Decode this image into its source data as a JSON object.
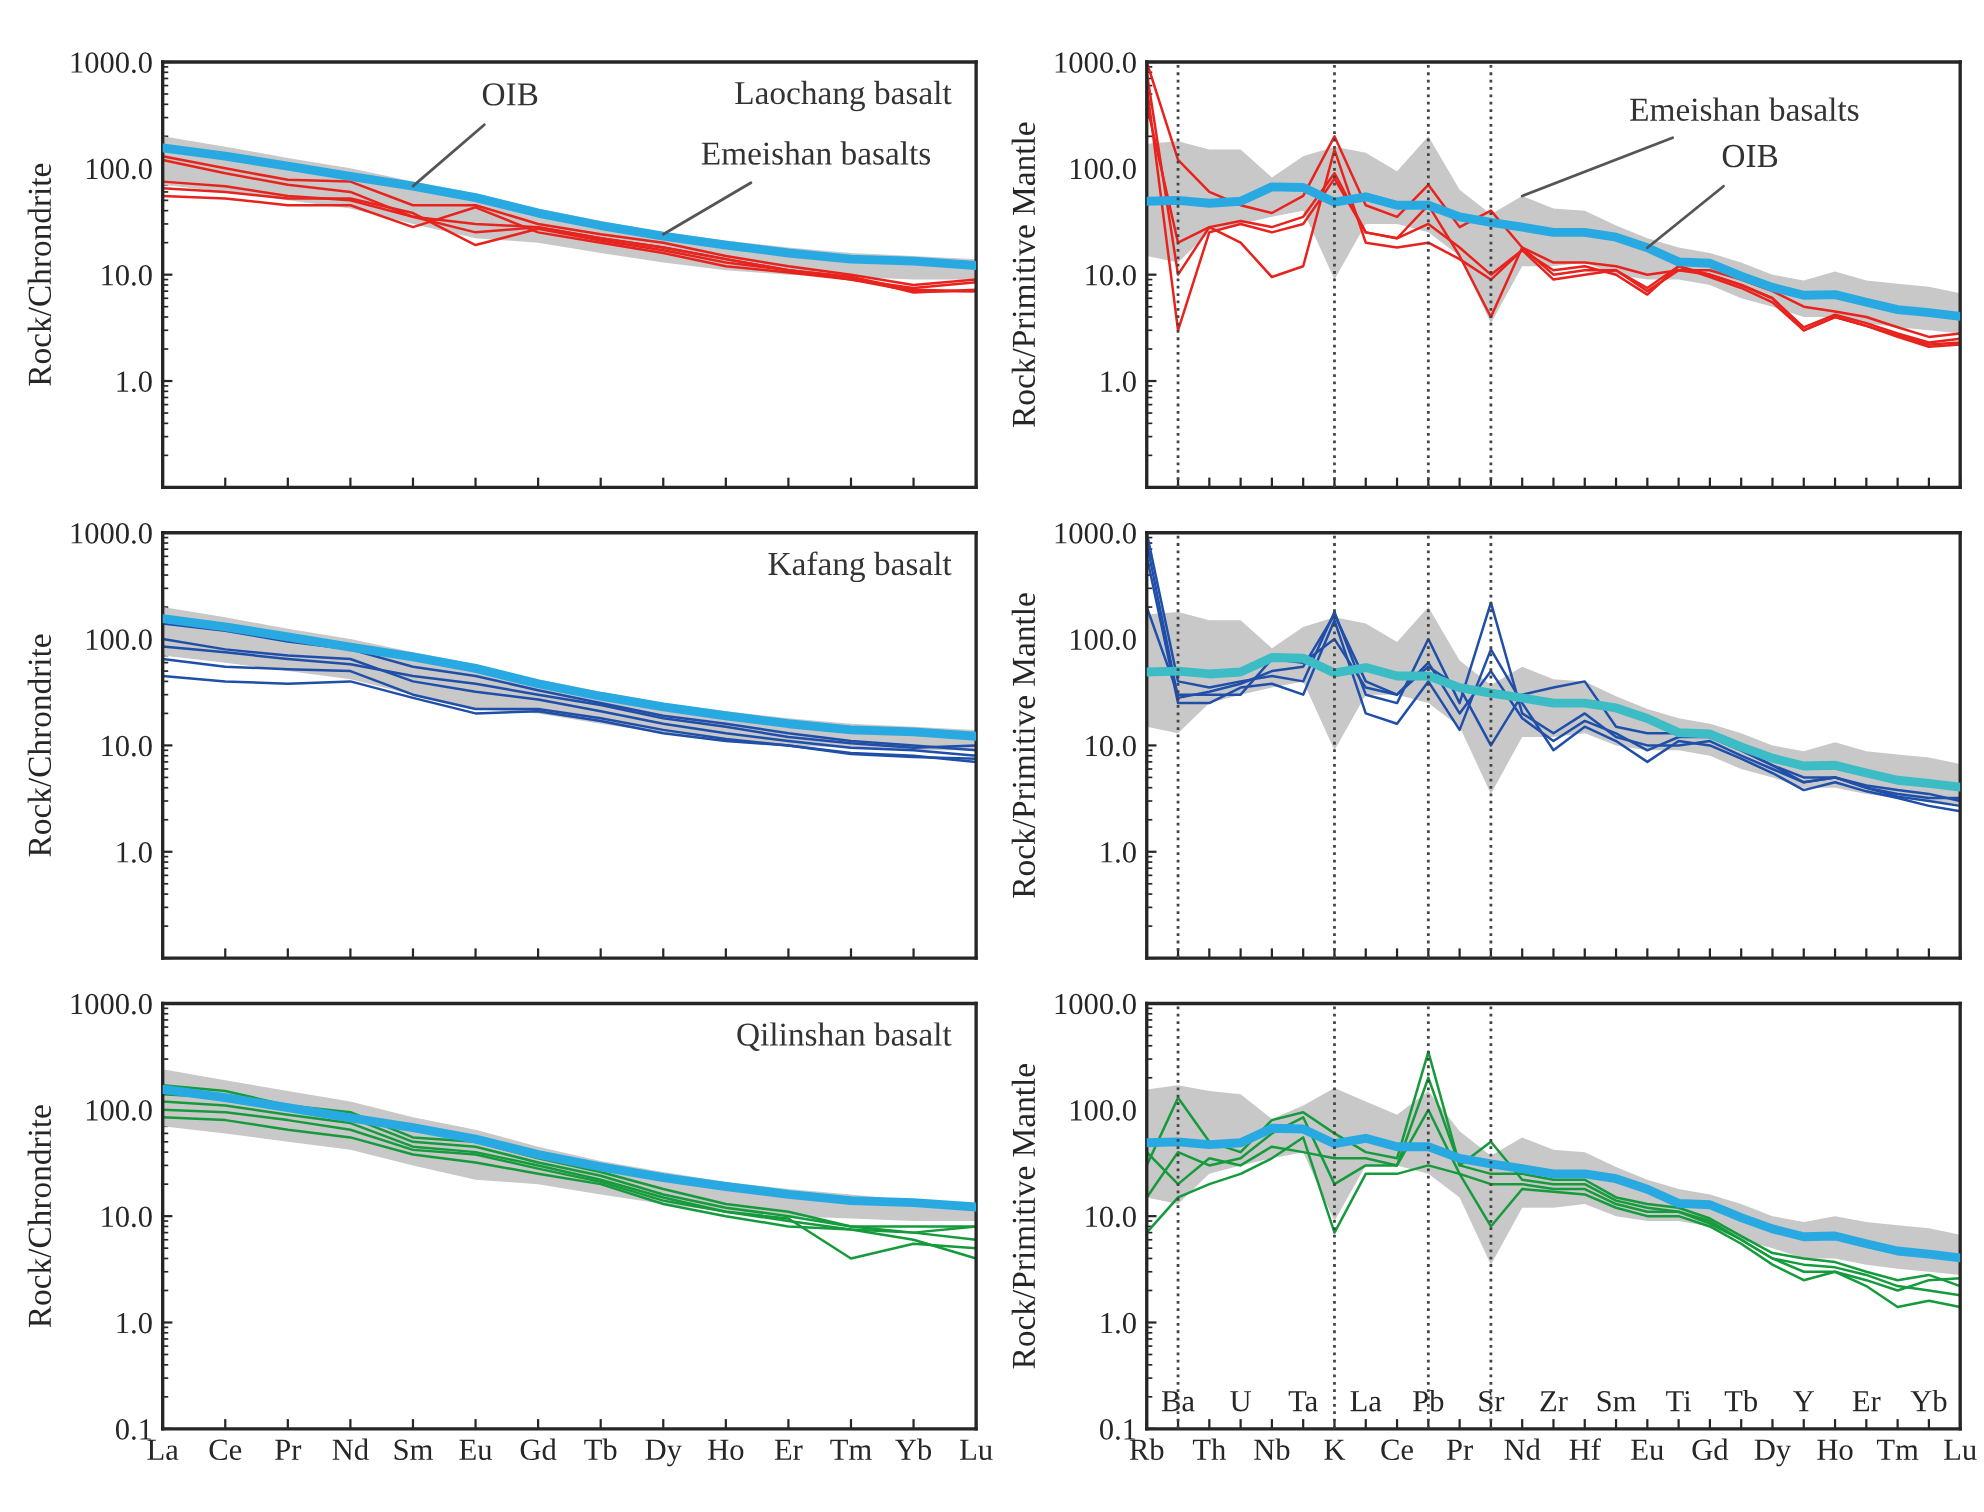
{
  "chart_data": [
    {
      "type": "line",
      "title": "Laochang basalt",
      "ylabel": "Rock/Chrondrite",
      "categories": [
        "La",
        "Ce",
        "Pr",
        "Nd",
        "Sm",
        "Eu",
        "Gd",
        "Tb",
        "Dy",
        "Ho",
        "Er",
        "Tm",
        "Yb",
        "Lu"
      ],
      "log": "y",
      "ylim": [
        0.1,
        1000
      ],
      "yticks": [
        {
          "value": 0.1,
          "label": null
        },
        {
          "value": 1,
          "label": "1.0"
        },
        {
          "value": 10,
          "label": "10.0"
        },
        {
          "value": 100,
          "label": "100.0"
        },
        {
          "value": 1000,
          "label": "1000.0"
        }
      ],
      "tick_labels": "y",
      "annotations": [
        {
          "text": "OIB",
          "x": "Sm",
          "y": 68
        },
        {
          "text": "Emeishan basalts",
          "x": "Dy",
          "y": 24
        }
      ],
      "series": [
        {
          "type": "area",
          "color": "#c8c8c8",
          "values": [
            null,
            null,
            null,
            null,
            null,
            null,
            null,
            null,
            null,
            null,
            null,
            null,
            null,
            null
          ],
          "lower": [
            70,
            60,
            50,
            42,
            30,
            22,
            20,
            16,
            13,
            11,
            10,
            9.5,
            9,
            9
          ],
          "upper": [
            200,
            160,
            125,
            100,
            75,
            58,
            42,
            32,
            25,
            21,
            18,
            16,
            15,
            14
          ]
        },
        {
          "color": "#e8231e",
          "values": [
            130,
            100,
            78,
            75,
            45,
            45,
            30,
            24,
            20,
            15,
            12,
            10,
            8,
            9
          ]
        },
        {
          "color": "#e8231e",
          "values": [
            75,
            68,
            55,
            50,
            35,
            30,
            28,
            22,
            18,
            14,
            11,
            9.5,
            6.8,
            7.2
          ]
        },
        {
          "color": "#e8231e",
          "values": [
            55,
            52,
            45,
            45,
            28,
            43,
            25,
            20,
            16,
            12,
            10.5,
            9,
            7,
            7
          ]
        },
        {
          "color": "#e8231e",
          "values": [
            65,
            60,
            52,
            52,
            38,
            19,
            27,
            21,
            17,
            13,
            11,
            9,
            7.5,
            8.5
          ]
        },
        {
          "color": "#e8231e",
          "values": [
            120,
            90,
            70,
            60,
            35,
            25,
            28,
            22,
            18,
            14,
            11,
            9.5,
            7.2,
            7
          ]
        },
        {
          "color": "#29a9e1",
          "values": [
            156,
            130,
            105,
            84,
            68,
            53,
            38,
            29,
            23,
            19,
            16,
            14,
            13.4,
            12.2
          ]
        }
      ]
    },
    {
      "type": "line",
      "ylabel": "Rock/Primitive Mantle",
      "categories": [
        "Rb",
        "Ba",
        "Th",
        "U",
        "Nb",
        "Ta",
        "K",
        "La",
        "Ce",
        "Pb",
        "Pr",
        "Sr",
        "Nd",
        "Zr",
        "Hf",
        "Sm",
        "Eu",
        "Ti",
        "Gd",
        "Tb",
        "Dy",
        "Y",
        "Ho",
        "Er",
        "Tm",
        "Yb",
        "Lu"
      ],
      "log": "y",
      "ylim": [
        0.1,
        1000
      ],
      "yticks": [
        {
          "value": 0.1,
          "label": null
        },
        {
          "value": 1,
          "label": "1.0"
        },
        {
          "value": 10,
          "label": "10.0"
        },
        {
          "value": 100,
          "label": "100.0"
        },
        {
          "value": 1000,
          "label": "1000.0"
        }
      ],
      "tick_labels": "y",
      "ref_lines": [
        {
          "axis": "x",
          "value": "Ba",
          "line_style": "dotted"
        },
        {
          "axis": "x",
          "value": "K",
          "line_style": "dotted"
        },
        {
          "axis": "x",
          "value": "Pb",
          "line_style": "dotted"
        },
        {
          "axis": "x",
          "value": "Sr",
          "line_style": "dotted"
        }
      ],
      "annotations": [
        {
          "text": "Emeishan basalts",
          "x": "Nd",
          "y": 55
        },
        {
          "text": "OIB",
          "x": "Eu",
          "y": 17.9
        }
      ],
      "series": [
        {
          "type": "area",
          "color": "#c8c8c8",
          "values": [
            null,
            null,
            null,
            null,
            null,
            null,
            null,
            null,
            null,
            null,
            null,
            null,
            null,
            null,
            null,
            null,
            null,
            null,
            null,
            null,
            null,
            null,
            null,
            null,
            null,
            null,
            null
          ],
          "lower": [
            15,
            13,
            25,
            30,
            35,
            40,
            9,
            30,
            30,
            25,
            15,
            3.5,
            12,
            12,
            13,
            10,
            9,
            9,
            8,
            6,
            5,
            4,
            4,
            3.5,
            3.2,
            3,
            2.8
          ],
          "upper": [
            170,
            180,
            150,
            150,
            82,
            130,
            160,
            140,
            94,
            200,
            63,
            37,
            55,
            42,
            40,
            29,
            22,
            18,
            16,
            13,
            10,
            8.8,
            10.7,
            8.8,
            8.2,
            7.7,
            6.7
          ]
        },
        {
          "color": "#e8231e",
          "values": [
            1000,
            120,
            60,
            45,
            38,
            55,
            200,
            45,
            35,
            70,
            28,
            40,
            18,
            13,
            13,
            12,
            10,
            11,
            11,
            9,
            7,
            5,
            4.5,
            4,
            3.2,
            2.6,
            2.8
          ]
        },
        {
          "color": "#e8231e",
          "values": [
            600,
            3,
            25,
            30,
            25,
            30,
            80,
            25,
            22,
            45,
            15,
            4,
            18,
            10,
            11,
            11,
            7,
            11,
            10,
            8,
            6,
            3.2,
            4.2,
            3.5,
            2.8,
            2.3,
            2.5
          ]
        },
        {
          "color": "#e8231e",
          "values": [
            800,
            10,
            28,
            32,
            28,
            35,
            90,
            25,
            22,
            30,
            18,
            10,
            17,
            11,
            12,
            10,
            6.5,
            12,
            10,
            8,
            6,
            3,
            4,
            3.3,
            2.7,
            2.2,
            2.3
          ]
        },
        {
          "color": "#e8231e",
          "values": [
            400,
            20,
            28,
            20,
            9.5,
            12,
            150,
            20,
            18,
            20,
            14,
            9,
            17,
            9,
            10,
            11,
            7.5,
            12,
            9.5,
            7.5,
            5.5,
            3,
            4,
            3.3,
            2.6,
            2.1,
            2.2
          ]
        },
        {
          "color": "#29a9e1",
          "values": [
            49,
            50,
            47,
            49,
            67,
            66,
            48,
            54,
            45,
            45,
            35,
            31,
            28,
            25,
            25,
            22.5,
            17.9,
            13.2,
            12.8,
            9.7,
            7.6,
            6.4,
            6.5,
            5.5,
            4.7,
            4.4,
            4.05
          ]
        }
      ]
    },
    {
      "type": "line",
      "title": "Kafang basalt",
      "ylabel": "Rock/Chrondrite",
      "categories": [
        "La",
        "Ce",
        "Pr",
        "Nd",
        "Sm",
        "Eu",
        "Gd",
        "Tb",
        "Dy",
        "Ho",
        "Er",
        "Tm",
        "Yb",
        "Lu"
      ],
      "log": "y",
      "ylim": [
        0.1,
        1000
      ],
      "yticks": [
        {
          "value": 0.1,
          "label": null
        },
        {
          "value": 1,
          "label": "1.0"
        },
        {
          "value": 10,
          "label": "10.0"
        },
        {
          "value": 100,
          "label": "100.0"
        },
        {
          "value": 1000,
          "label": "1000.0"
        }
      ],
      "tick_labels": "y",
      "series": [
        {
          "type": "area",
          "color": "#c8c8c8",
          "values": [
            null,
            null,
            null,
            null,
            null,
            null,
            null,
            null,
            null,
            null,
            null,
            null,
            null,
            null
          ],
          "lower": [
            70,
            60,
            50,
            42,
            30,
            22,
            20,
            16,
            13,
            11,
            10,
            9.5,
            9,
            9
          ],
          "upper": [
            200,
            160,
            125,
            100,
            75,
            58,
            42,
            32,
            25,
            21,
            18,
            16,
            15,
            14
          ]
        },
        {
          "color": "#1f4fa8",
          "values": [
            140,
            120,
            95,
            80,
            55,
            45,
            33,
            25,
            19,
            16,
            13,
            11,
            10,
            9
          ]
        },
        {
          "color": "#1f4fa8",
          "values": [
            100,
            80,
            70,
            65,
            40,
            32,
            27,
            21,
            16,
            13,
            11,
            9.5,
            9,
            8
          ]
        },
        {
          "color": "#1f4fa8",
          "values": [
            65,
            55,
            52,
            50,
            30,
            22,
            22,
            18,
            14,
            11.5,
            10,
            8.5,
            8,
            7
          ]
        },
        {
          "color": "#1f4fa8",
          "values": [
            45,
            40,
            38,
            40,
            28,
            20,
            21,
            17,
            13,
            11,
            10,
            8.3,
            7.8,
            7.5
          ]
        },
        {
          "color": "#1f4fa8",
          "values": [
            85,
            75,
            65,
            58,
            45,
            38,
            30,
            24,
            18,
            15,
            12,
            10.5,
            9.5,
            10
          ]
        },
        {
          "color": "#29a9e1",
          "values": [
            156,
            130,
            105,
            84,
            68,
            53,
            38,
            29,
            23,
            19,
            16,
            14,
            13.4,
            12.2
          ]
        }
      ]
    },
    {
      "type": "line",
      "ylabel": "Rock/Primitive Mantle",
      "categories": [
        "Rb",
        "Ba",
        "Th",
        "U",
        "Nb",
        "Ta",
        "K",
        "La",
        "Ce",
        "Pb",
        "Pr",
        "Sr",
        "Nd",
        "Zr",
        "Hf",
        "Sm",
        "Eu",
        "Ti",
        "Gd",
        "Tb",
        "Dy",
        "Y",
        "Ho",
        "Er",
        "Tm",
        "Yb",
        "Lu"
      ],
      "log": "y",
      "ylim": [
        0.1,
        1000
      ],
      "yticks": [
        {
          "value": 0.1,
          "label": null
        },
        {
          "value": 1,
          "label": "1.0"
        },
        {
          "value": 10,
          "label": "10.0"
        },
        {
          "value": 100,
          "label": "100.0"
        },
        {
          "value": 1000,
          "label": "1000.0"
        }
      ],
      "tick_labels": "y",
      "ref_lines": [
        {
          "axis": "x",
          "value": "Ba",
          "line_style": "dotted"
        },
        {
          "axis": "x",
          "value": "K",
          "line_style": "dotted"
        },
        {
          "axis": "x",
          "value": "Pb",
          "line_style": "dotted"
        },
        {
          "axis": "x",
          "value": "Sr",
          "line_style": "dotted"
        }
      ],
      "series": [
        {
          "type": "area",
          "color": "#c8c8c8",
          "values": [
            null,
            null,
            null,
            null,
            null,
            null,
            null,
            null,
            null,
            null,
            null,
            null,
            null,
            null,
            null,
            null,
            null,
            null,
            null,
            null,
            null,
            null,
            null,
            null,
            null,
            null,
            null
          ],
          "lower": [
            15,
            13,
            25,
            30,
            35,
            40,
            9,
            30,
            30,
            25,
            15,
            3.5,
            12,
            12,
            13,
            10,
            9,
            9,
            8,
            6,
            5,
            4,
            4,
            3.5,
            3.2,
            3,
            2.8
          ],
          "upper": [
            170,
            180,
            150,
            150,
            82,
            130,
            160,
            140,
            94,
            200,
            63,
            37,
            55,
            42,
            40,
            29,
            22,
            18,
            16,
            13,
            10,
            8.8,
            10.7,
            8.8,
            8.2,
            7.7,
            6.7
          ]
        },
        {
          "color": "#1f4fa8",
          "values": [
            1000,
            40,
            35,
            40,
            45,
            40,
            180,
            30,
            25,
            100,
            25,
            220,
            20,
            13,
            20,
            12,
            10,
            10,
            11,
            8,
            6,
            4.5,
            5,
            4,
            3.3,
            3,
            2.7
          ]
        },
        {
          "color": "#1f4fa8",
          "values": [
            600,
            25,
            25,
            35,
            38,
            30,
            150,
            20,
            16,
            40,
            14,
            80,
            25,
            9,
            15,
            11,
            7,
            11,
            10,
            7.5,
            5.5,
            3.8,
            4.5,
            3.7,
            3.2,
            2.7,
            2.4
          ]
        },
        {
          "color": "#1f4fa8",
          "values": [
            200,
            30,
            30,
            30,
            65,
            60,
            100,
            35,
            30,
            55,
            35,
            10,
            30,
            35,
            40,
            15,
            13,
            13,
            12,
            9,
            6.5,
            5,
            5,
            4.2,
            3.8,
            3.5,
            3
          ]
        },
        {
          "color": "#1f4fa8",
          "values": [
            800,
            28,
            32,
            38,
            50,
            55,
            170,
            40,
            30,
            60,
            20,
            50,
            18,
            11,
            17,
            13,
            9,
            12,
            12,
            9,
            6.5,
            4.5,
            5,
            4,
            3.5,
            3.2,
            3.2
          ]
        },
        {
          "color": "#3cbcc4",
          "values": [
            49,
            50,
            47,
            49,
            67,
            66,
            48,
            54,
            45,
            45,
            35,
            31,
            28,
            25,
            25,
            22.5,
            17.9,
            13.2,
            12.8,
            9.7,
            7.6,
            6.4,
            6.5,
            5.5,
            4.7,
            4.4,
            4.05
          ]
        }
      ]
    },
    {
      "type": "line",
      "title": "Qilinshan basalt",
      "ylabel": "Rock/Chrondrite",
      "categories": [
        "La",
        "Ce",
        "Pr",
        "Nd",
        "Sm",
        "Eu",
        "Gd",
        "Tb",
        "Dy",
        "Ho",
        "Er",
        "Tm",
        "Yb",
        "Lu"
      ],
      "log": "y",
      "ylim": [
        0.1,
        1000
      ],
      "yticks": [
        {
          "value": 0.1,
          "label": "0.1"
        },
        {
          "value": 1,
          "label": "1.0"
        },
        {
          "value": 10,
          "label": "10.0"
        },
        {
          "value": 100,
          "label": "100.0"
        },
        {
          "value": 1000,
          "label": "1000.0"
        }
      ],
      "series": [
        {
          "type": "area",
          "color": "#c8c8c8",
          "values": [
            null,
            null,
            null,
            null,
            null,
            null,
            null,
            null,
            null,
            null,
            null,
            null,
            null,
            null
          ],
          "lower": [
            70,
            60,
            50,
            42,
            30,
            22,
            20,
            16,
            13,
            11,
            10,
            9.5,
            9,
            9
          ],
          "upper": [
            240,
            190,
            150,
            120,
            85,
            65,
            45,
            33,
            26,
            21,
            18,
            16,
            14,
            13
          ]
        },
        {
          "color": "#159a3c",
          "values": [
            170,
            150,
            110,
            95,
            55,
            50,
            35,
            26,
            18,
            13,
            11,
            8,
            8,
            8
          ]
        },
        {
          "color": "#159a3c",
          "values": [
            120,
            110,
            90,
            75,
            45,
            40,
            30,
            22,
            15,
            11,
            9.5,
            4,
            5.5,
            5
          ]
        },
        {
          "color": "#159a3c",
          "values": [
            85,
            80,
            65,
            55,
            38,
            32,
            25,
            20,
            13,
            10,
            8,
            7.5,
            6,
            4
          ]
        },
        {
          "color": "#159a3c",
          "values": [
            140,
            130,
            100,
            85,
            50,
            45,
            32,
            24,
            16,
            12,
            10,
            8,
            7,
            6
          ]
        },
        {
          "color": "#159a3c",
          "values": [
            100,
            95,
            80,
            65,
            42,
            38,
            28,
            21,
            14,
            11,
            9,
            7.5,
            7,
            8
          ]
        },
        {
          "color": "#29a9e1",
          "values": [
            156,
            130,
            105,
            84,
            68,
            53,
            38,
            29,
            23,
            19,
            16,
            14,
            13.4,
            12.2
          ]
        }
      ]
    },
    {
      "type": "line",
      "ylabel": "Rock/Primitive Mantle",
      "categories": [
        "Rb",
        "Ba",
        "Th",
        "U",
        "Nb",
        "Ta",
        "K",
        "La",
        "Ce",
        "Pb",
        "Pr",
        "Sr",
        "Nd",
        "Zr",
        "Hf",
        "Sm",
        "Eu",
        "Ti",
        "Gd",
        "Tb",
        "Dy",
        "Y",
        "Ho",
        "Er",
        "Tm",
        "Yb",
        "Lu"
      ],
      "log": "y",
      "ylim": [
        0.1,
        1000
      ],
      "yticks": [
        {
          "value": 0.1,
          "label": "0.1"
        },
        {
          "value": 1,
          "label": "1.0"
        },
        {
          "value": 10,
          "label": "10.0"
        },
        {
          "value": 100,
          "label": "100.0"
        },
        {
          "value": 1000,
          "label": "1000.0"
        }
      ],
      "ref_lines": [
        {
          "axis": "x",
          "value": "Ba",
          "line_style": "dotted"
        },
        {
          "axis": "x",
          "value": "K",
          "line_style": "dotted"
        },
        {
          "axis": "x",
          "value": "Pb",
          "line_style": "dotted"
        },
        {
          "axis": "x",
          "value": "Sr",
          "line_style": "dotted"
        }
      ],
      "series": [
        {
          "type": "area",
          "color": "#c8c8c8",
          "values": [
            null,
            null,
            null,
            null,
            null,
            null,
            null,
            null,
            null,
            null,
            null,
            null,
            null,
            null,
            null,
            null,
            null,
            null,
            null,
            null,
            null,
            null,
            null,
            null,
            null,
            null,
            null
          ],
          "lower": [
            15,
            13,
            25,
            30,
            35,
            40,
            9,
            30,
            30,
            25,
            15,
            3.5,
            12,
            12,
            13,
            10,
            9,
            9,
            8,
            6,
            5,
            4,
            4,
            3.5,
            3.2,
            3,
            2.8
          ],
          "upper": [
            155,
            170,
            150,
            140,
            82,
            110,
            160,
            120,
            90,
            150,
            63,
            37,
            55,
            42,
            40,
            29,
            22,
            18,
            16,
            13,
            10,
            8.8,
            10,
            8.8,
            8.2,
            7.7,
            6.7
          ]
        },
        {
          "color": "#159a3c",
          "values": [
            30,
            130,
            50,
            40,
            80,
            95,
            60,
            40,
            35,
            350,
            30,
            50,
            22,
            20,
            20,
            14,
            12,
            11,
            9,
            6,
            4,
            3,
            3,
            2.5,
            2,
            2.5,
            2.6
          ]
        },
        {
          "color": "#159a3c",
          "values": [
            7,
            15,
            20,
            25,
            35,
            55,
            7,
            25,
            25,
            30,
            25,
            8,
            18,
            17,
            16,
            12,
            10,
            10,
            8,
            5.5,
            3.5,
            2.5,
            3,
            2.2,
            1.4,
            1.6,
            1.4
          ]
        },
        {
          "color": "#159a3c",
          "values": [
            15,
            40,
            30,
            35,
            60,
            85,
            20,
            30,
            30,
            100,
            25,
            20,
            20,
            18,
            18,
            13,
            11,
            11,
            8.5,
            6,
            4,
            3.5,
            3.3,
            2.8,
            2.2,
            2,
            1.8
          ]
        },
        {
          "color": "#159a3c",
          "values": [
            40,
            20,
            35,
            30,
            45,
            40,
            35,
            35,
            30,
            200,
            30,
            25,
            25,
            22,
            22,
            15,
            13,
            12,
            9.5,
            6.5,
            4.5,
            4,
            3.7,
            3,
            2.5,
            2.8,
            2.2
          ]
        },
        {
          "color": "#29a9e1",
          "values": [
            49,
            50,
            47,
            49,
            67,
            66,
            48,
            54,
            45,
            45,
            35,
            31,
            28,
            25,
            25,
            22.5,
            17.9,
            13.2,
            12.8,
            9.7,
            7.6,
            6.4,
            6.5,
            5.5,
            4.7,
            4.4,
            4.05
          ]
        }
      ]
    }
  ]
}
